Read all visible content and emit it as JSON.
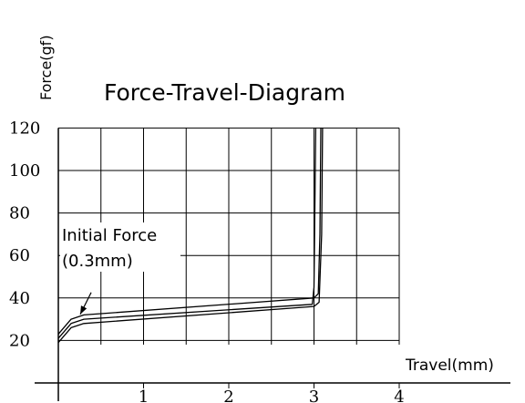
{
  "chart_data": {
    "type": "line",
    "title": "Force-Travel-Diagram",
    "xlabel": "Travel(mm)",
    "ylabel": "Force(gf)",
    "xlim": [
      0,
      4
    ],
    "ylim": [
      0,
      120
    ],
    "x_ticks": [
      "1",
      "2",
      "3",
      "4"
    ],
    "y_ticks": [
      "20",
      "40",
      "60",
      "80",
      "100",
      "120"
    ],
    "grid": true,
    "annotation": {
      "lines": [
        "Initial Force",
        "(0.3mm)"
      ],
      "target": {
        "x": 0.3,
        "y": 31
      }
    },
    "series": [
      {
        "x": [
          0,
          0.15,
          0.3,
          3.0,
          3.05,
          3.07,
          3.08
        ],
        "y": [
          23,
          30,
          32,
          40,
          42,
          70,
          120
        ]
      },
      {
        "x": [
          0,
          0.15,
          0.3,
          3.0,
          3.06,
          3.09,
          3.1
        ],
        "y": [
          19,
          26,
          28,
          36,
          38,
          70,
          120
        ]
      },
      {
        "x": [
          0,
          0.15,
          0.3,
          2.98,
          3.0,
          3.01,
          3.02
        ],
        "y": [
          21,
          28,
          30,
          37,
          45,
          80,
          120
        ]
      }
    ]
  }
}
